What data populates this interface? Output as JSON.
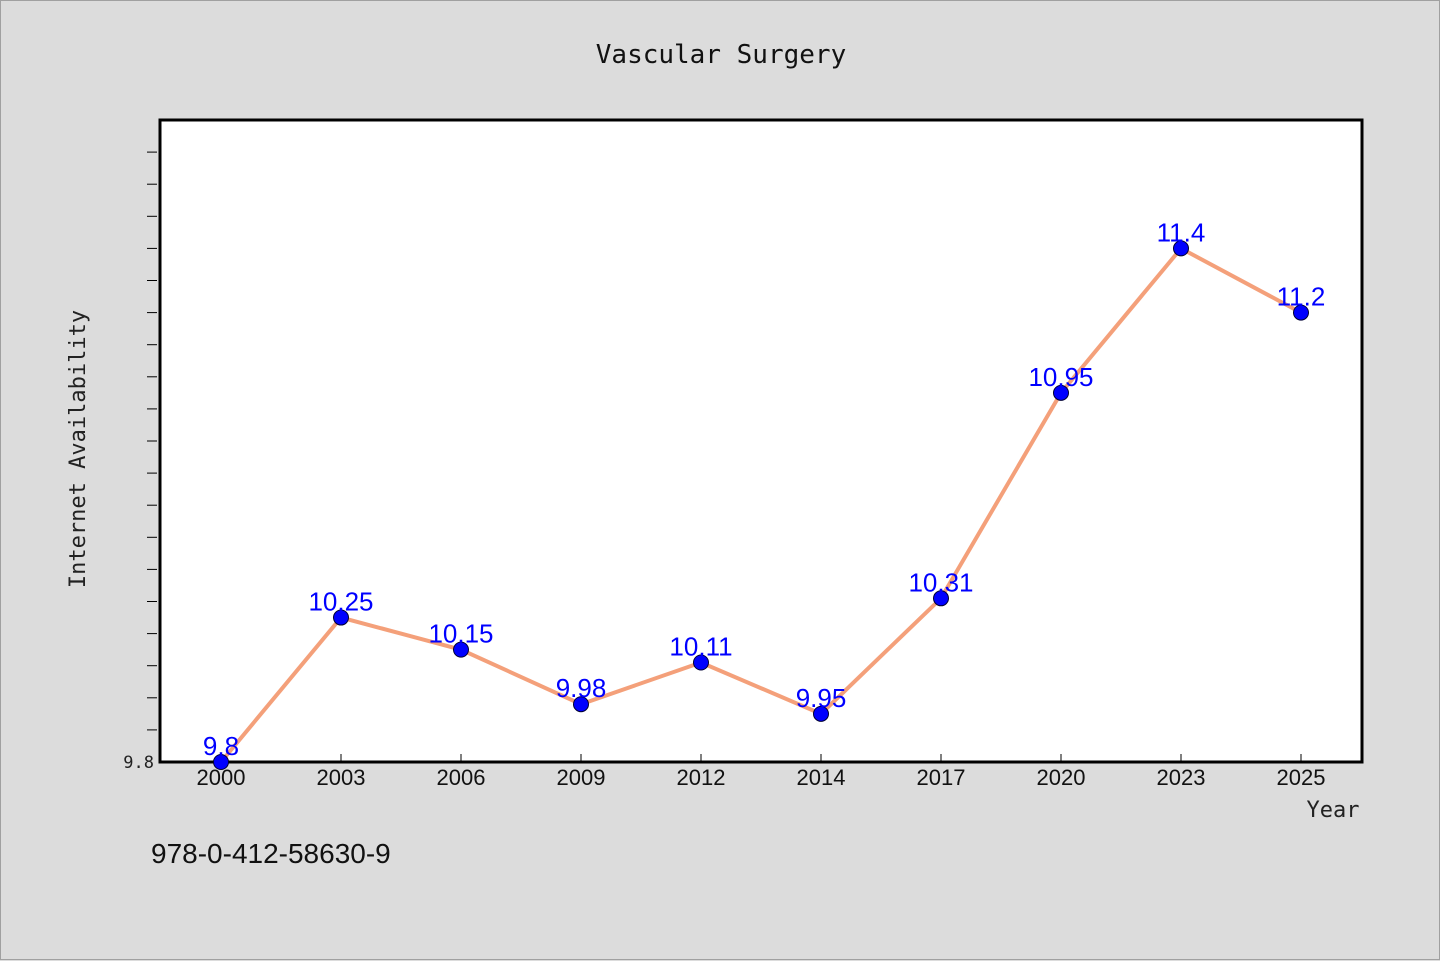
{
  "chart_data": {
    "type": "line",
    "title": "Vascular Surgery",
    "xlabel": "Year",
    "ylabel": "Internet Availability",
    "x": [
      "2000",
      "2003",
      "2006",
      "2009",
      "2012",
      "2014",
      "2017",
      "2020",
      "2023",
      "2025"
    ],
    "series": [
      {
        "values": [
          9.8,
          10.25,
          10.15,
          9.98,
          10.11,
          9.95,
          10.31,
          10.95,
          11.4,
          11.2
        ],
        "data_labels": [
          "9.8",
          "10.25",
          "10.15",
          "9.98",
          "10.11",
          "9.95",
          "10.31",
          "10.95",
          "11.4",
          "11.2"
        ]
      }
    ],
    "ylim": [
      9.8,
      11.8
    ],
    "y_tick_labels": [
      "9.8"
    ],
    "grid": false,
    "line_color": "#f4a07a",
    "marker_color": "#0000ff",
    "label_color": "#0000ff"
  },
  "footnote": "978-0-412-58630-9"
}
